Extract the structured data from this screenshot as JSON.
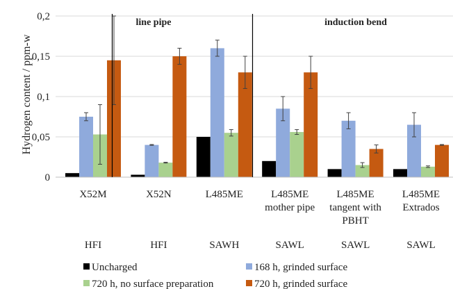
{
  "chart_data": {
    "type": "bar",
    "ylabel": "Hydrogen content / ppm-w",
    "ylim": [
      0,
      0.2
    ],
    "yticks": [
      "0",
      "0,05",
      "0,1",
      "0,15",
      "0,2"
    ],
    "grid": true,
    "legend_placement": "bottom",
    "sections": [
      {
        "label": "line pipe"
      },
      {
        "label": "induction bend"
      }
    ],
    "categories": [
      {
        "lines": [
          "X52M"
        ],
        "process": "HFI"
      },
      {
        "lines": [
          "X52N"
        ],
        "process": "HFI"
      },
      {
        "lines": [
          "L485ME"
        ],
        "process": "SAWH"
      },
      {
        "lines": [
          "L485ME",
          "mother pipe"
        ],
        "process": "SAWL"
      },
      {
        "lines": [
          "L485ME",
          "tangent with",
          "PBHT"
        ],
        "process": "SAWL"
      },
      {
        "lines": [
          "L485ME",
          "Extrados"
        ],
        "process": "SAWL"
      }
    ],
    "series": [
      {
        "name": "Uncharged",
        "color": "#000000",
        "values": [
          0.005,
          0.003,
          0.05,
          0.02,
          0.01,
          0.01
        ],
        "errors": [
          null,
          null,
          null,
          null,
          null,
          null
        ]
      },
      {
        "name": "168 h, grinded surface",
        "color": "#8faadc",
        "values": [
          0.075,
          0.04,
          0.16,
          0.085,
          0.07,
          0.065
        ],
        "errors": [
          0.005,
          0.0005,
          0.01,
          0.015,
          0.01,
          0.015
        ]
      },
      {
        "name": "720 h, no surface preparation",
        "color": "#a9d18e",
        "values": [
          0.053,
          0.018,
          0.055,
          0.056,
          0.015,
          0.013
        ],
        "errors": [
          0.037,
          0.0005,
          0.004,
          0.003,
          0.003,
          0.001
        ]
      },
      {
        "name": "720 h, grinded surface",
        "color": "#c55a11",
        "values": [
          0.145,
          0.15,
          0.13,
          0.13,
          0.035,
          0.04
        ],
        "errors": [
          0.055,
          0.01,
          0.02,
          0.02,
          0.005,
          0.0005
        ]
      }
    ]
  }
}
